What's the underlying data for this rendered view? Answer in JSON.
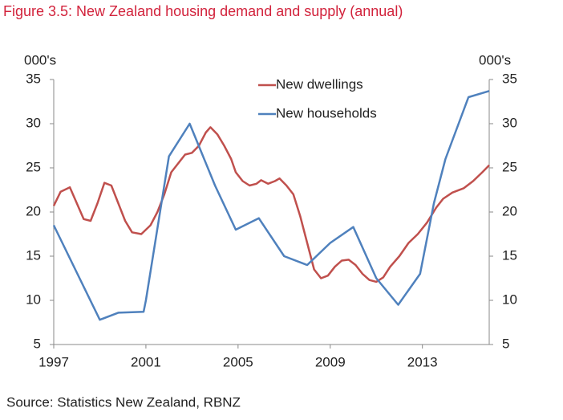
{
  "chart_data": {
    "type": "line",
    "title": "Figure 3.5: New Zealand housing demand and supply (annual)",
    "ylabel": "000's",
    "y2label": "000's",
    "source": "Source: Statistics New Zealand, RBNZ",
    "xlim": [
      1997,
      2015.9
    ],
    "xticks": [
      1997,
      2001,
      2005,
      2009,
      2013
    ],
    "ylim": [
      5,
      35
    ],
    "yticks": [
      5,
      10,
      15,
      20,
      25,
      30,
      35
    ],
    "y2lim": [
      5,
      35
    ],
    "y2ticks": [
      5,
      10,
      15,
      20,
      25,
      30,
      35
    ],
    "series": [
      {
        "name": "New dwellings",
        "color": "#c0504d",
        "x": [
          1997,
          1997.3,
          1997.7,
          1998.0,
          1998.3,
          1998.6,
          1998.9,
          1999.2,
          1999.5,
          1999.8,
          2000.1,
          2000.4,
          2000.8,
          2001.2,
          2001.5,
          2001.8,
          2002.1,
          2002.4,
          2002.7,
          2003.0,
          2003.3,
          2003.6,
          2003.8,
          2004.1,
          2004.4,
          2004.7,
          2004.9,
          2005.2,
          2005.5,
          2005.8,
          2006.0,
          2006.3,
          2006.6,
          2006.8,
          2007.1,
          2007.4,
          2007.7,
          2008.0,
          2008.3,
          2008.6,
          2008.9,
          2009.2,
          2009.5,
          2009.8,
          2010.1,
          2010.4,
          2010.7,
          2011.0,
          2011.3,
          2011.6,
          2012.0,
          2012.4,
          2012.8,
          2013.2,
          2013.6,
          2013.9,
          2014.3,
          2014.8,
          2015.2,
          2015.6,
          2015.9
        ],
        "values": [
          20.7,
          22.3,
          22.8,
          21,
          19.2,
          19,
          21,
          23.3,
          23,
          21,
          19,
          17.7,
          17.5,
          18.5,
          20,
          22,
          24.5,
          25.5,
          26.5,
          26.7,
          27.5,
          29,
          29.6,
          28.8,
          27.5,
          26,
          24.5,
          23.5,
          23,
          23.2,
          23.6,
          23.2,
          23.5,
          23.8,
          23,
          22,
          19.5,
          16.5,
          13.5,
          12.5,
          12.8,
          13.8,
          14.5,
          14.6,
          14,
          13,
          12.3,
          12.1,
          12.6,
          13.8,
          15,
          16.5,
          17.5,
          18.8,
          20.5,
          21.5,
          22.2,
          22.7,
          23.5,
          24.5,
          25.3
        ]
      },
      {
        "name": "New households",
        "color": "#4f81bd",
        "axis": "y2",
        "x": [
          1997,
          1999.0,
          1999.8,
          2000.9,
          2001.0,
          2002.0,
          2002.9,
          2004.0,
          2004.9,
          2005.9,
          2007.0,
          2008.0,
          2009.0,
          2010.0,
          2011.0,
          2011.95,
          2012.9,
          2013.5,
          2014.0,
          2015.0,
          2015.9
        ],
        "values": [
          18.5,
          7.8,
          8.6,
          8.7,
          10,
          26.3,
          30,
          23,
          18,
          19.3,
          15,
          14,
          16.5,
          18.3,
          12.5,
          9.5,
          13,
          21,
          26,
          33,
          33.7
        ]
      }
    ]
  }
}
